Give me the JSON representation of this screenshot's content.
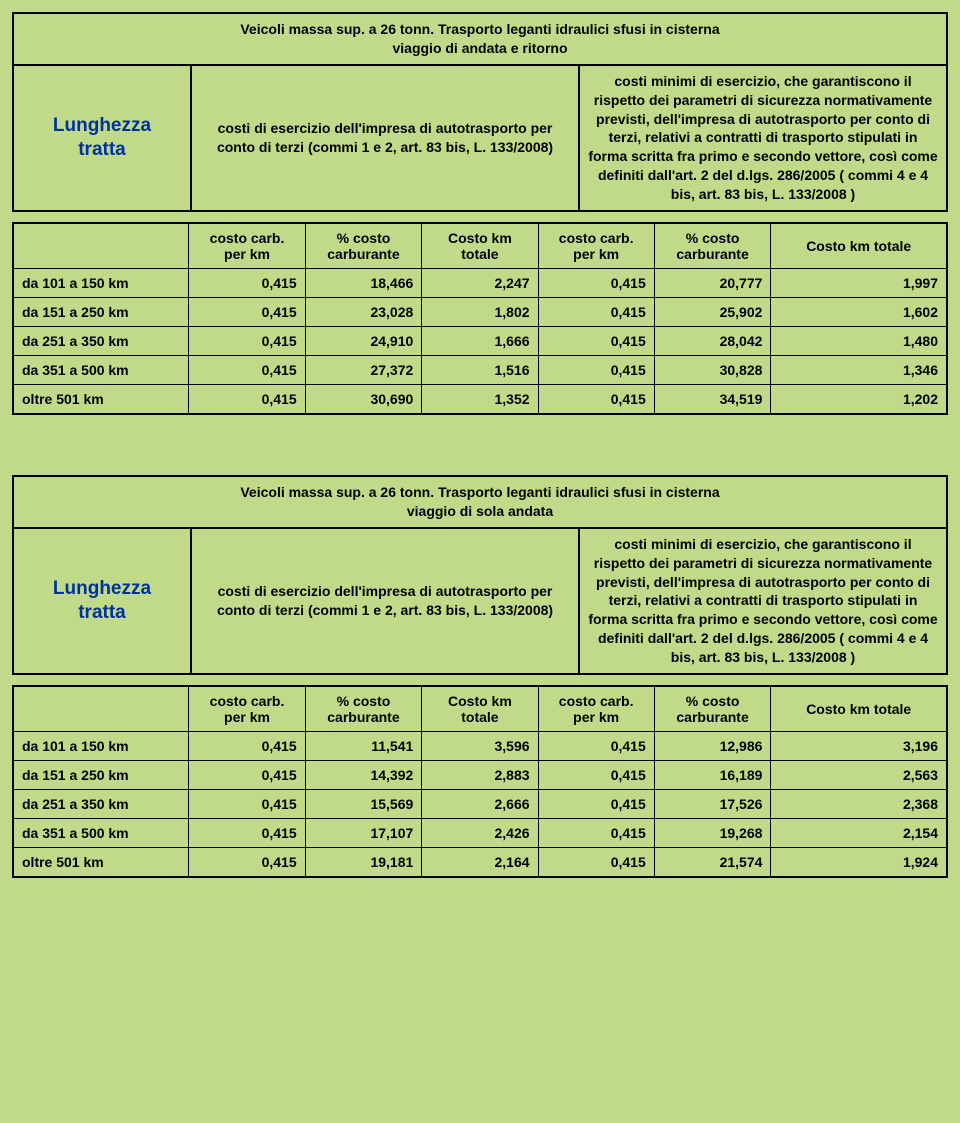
{
  "blocks": [
    {
      "title_l1": "Veicoli massa sup. a 26 tonn. Trasporto leganti idraulici sfusi in cisterna",
      "title_l2": "viaggio di andata e ritorno",
      "lung_l1": "Lunghezza",
      "lung_l2": "tratta",
      "desc_left": "costi di esercizio dell'impresa di autotrasporto per conto di terzi (commi 1 e 2, art. 83 bis, L. 133/2008)",
      "desc_right": "costi minimi di esercizio, che garantiscono il rispetto dei parametri di sicurezza normativamente previsti, dell'impresa di autotrasporto per conto di terzi, relativi a contratti di trasporto stipulati in forma scritta fra primo e secondo vettore, così come definiti dall'art. 2 del d.lgs. 286/2005 ( commi 4 e 4 bis, art. 83 bis, L. 133/2008 )",
      "headers": {
        "h1_l1": "costo carb.",
        "h1_l2": "per km",
        "h2_l1": "% costo",
        "h2_l2": "carburante",
        "h3_l1": "Costo km",
        "h3_l2": "totale",
        "h4_l1": "costo carb.",
        "h4_l2": "per km",
        "h5_l1": "% costo",
        "h5_l2": "carburante",
        "h6": "Costo km totale"
      },
      "rows": [
        {
          "label": "da  101 a 150 km",
          "c1": "0,415",
          "c2": "18,466",
          "c3": "2,247",
          "c4": "0,415",
          "c5": "20,777",
          "c6": "1,997"
        },
        {
          "label": "da 151 a 250 km",
          "c1": "0,415",
          "c2": "23,028",
          "c3": "1,802",
          "c4": "0,415",
          "c5": "25,902",
          "c6": "1,602"
        },
        {
          "label": "da 251 a 350 km",
          "c1": "0,415",
          "c2": "24,910",
          "c3": "1,666",
          "c4": "0,415",
          "c5": "28,042",
          "c6": "1,480"
        },
        {
          "label": "da 351 a 500 km",
          "c1": "0,415",
          "c2": "27,372",
          "c3": "1,516",
          "c4": "0,415",
          "c5": "30,828",
          "c6": "1,346"
        },
        {
          "label": "oltre 501 km",
          "c1": "0,415",
          "c2": "30,690",
          "c3": "1,352",
          "c4": "0,415",
          "c5": "34,519",
          "c6": "1,202"
        }
      ]
    },
    {
      "title_l1": "Veicoli massa sup. a 26 tonn. Trasporto  leganti idraulici sfusi  in cisterna",
      "title_l2": "viaggio di sola andata",
      "lung_l1": "Lunghezza",
      "lung_l2": "tratta",
      "desc_left": "costi di esercizio dell'impresa di autotrasporto per conto di terzi (commi 1 e 2, art. 83 bis, L. 133/2008)",
      "desc_right": "costi minimi di esercizio, che garantiscono il rispetto dei parametri di sicurezza normativamente previsti, dell'impresa di autotrasporto per conto di terzi, relativi a contratti di trasporto stipulati in forma scritta fra primo e secondo vettore, così come definiti dall'art. 2 del d.lgs. 286/2005 ( commi 4 e 4 bis, art. 83 bis, L. 133/2008 )",
      "headers": {
        "h1_l1": "costo carb.",
        "h1_l2": "per km",
        "h2_l1": "% costo",
        "h2_l2": "carburante",
        "h3_l1": "Costo km",
        "h3_l2": "totale",
        "h4_l1": "costo carb.",
        "h4_l2": "per km",
        "h5_l1": "% costo",
        "h5_l2": "carburante",
        "h6": "Costo km totale"
      },
      "rows": [
        {
          "label": "da  101 a 150 km",
          "c1": "0,415",
          "c2": "11,541",
          "c3": "3,596",
          "c4": "0,415",
          "c5": "12,986",
          "c6": "3,196"
        },
        {
          "label": "da 151 a 250 km",
          "c1": "0,415",
          "c2": "14,392",
          "c3": "2,883",
          "c4": "0,415",
          "c5": "16,189",
          "c6": "2,563"
        },
        {
          "label": "da 251 a 350 km",
          "c1": "0,415",
          "c2": "15,569",
          "c3": "2,666",
          "c4": "0,415",
          "c5": "17,526",
          "c6": "2,368"
        },
        {
          "label": "da 351 a 500 km",
          "c1": "0,415",
          "c2": "17,107",
          "c3": "2,426",
          "c4": "0,415",
          "c5": "19,268",
          "c6": "2,154"
        },
        {
          "label": "oltre 501 km",
          "c1": "0,415",
          "c2": "19,181",
          "c3": "2,164",
          "c4": "0,415",
          "c5": "21,574",
          "c6": "1,924"
        }
      ]
    }
  ],
  "colors": {
    "bg": "#c1da8a",
    "link": "#003399",
    "border": "#000000"
  }
}
